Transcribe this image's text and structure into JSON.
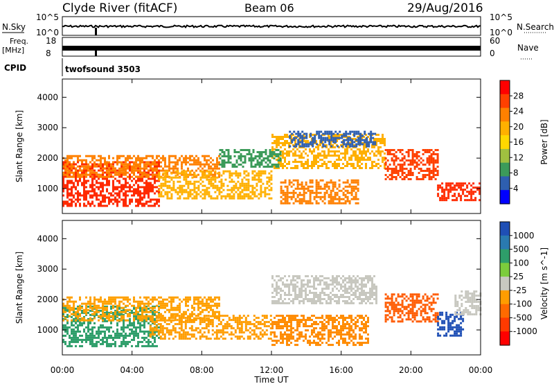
{
  "header": {
    "station": "Clyde River (fitACF)",
    "beam": "Beam 06",
    "date": "29/Aug/2016"
  },
  "top_panels": {
    "nsky_label": "N.Sky",
    "nsky_ticks": [
      "10^5",
      "10^0"
    ],
    "nsearch_label": "N.Search",
    "nsearch_ticks": [
      "10^5",
      "10^0"
    ],
    "freq_label_line1": "Freq.",
    "freq_label_line2": "[MHz]",
    "freq_ticks": [
      "18",
      "8"
    ],
    "nave_label": "Nave",
    "nave_ticks": [
      "60",
      "0"
    ],
    "cpid_label": "CPID",
    "cpid_value": "twofsound 3503"
  },
  "chart_data": [
    {
      "type": "heatmap",
      "title": "",
      "ylabel": "Slant Range [km]",
      "xlabel": "",
      "x_ticks": [
        "00:00",
        "04:00",
        "08:00",
        "12:00",
        "16:00",
        "20:00",
        "00:00"
      ],
      "y_ticks": [
        1000,
        2000,
        3000,
        4000
      ],
      "xlim_hours": [
        0,
        24
      ],
      "ylim_km": [
        180,
        4600
      ],
      "colorbar": {
        "label": "Power [dB]",
        "ticks": [
          "28",
          "24",
          "20",
          "16",
          "12",
          "8",
          "4"
        ],
        "colors": [
          "#ff0000",
          "#ff4000",
          "#ff8000",
          "#ffb000",
          "#ffd800",
          "#a0c040",
          "#3c9b5a",
          "#2e5fb0",
          "#0000ff"
        ]
      },
      "bands": [
        {
          "t0": 0.0,
          "t1": 5.5,
          "r0": 400,
          "r1": 1900,
          "color": "#ff2a00"
        },
        {
          "t0": 0.0,
          "t1": 9.0,
          "r0": 1400,
          "r1": 2100,
          "color": "#ff8000"
        },
        {
          "t0": 5.5,
          "t1": 12.0,
          "r0": 700,
          "r1": 1600,
          "color": "#ffb000"
        },
        {
          "t0": 12.0,
          "t1": 18.5,
          "r0": 1700,
          "r1": 2800,
          "color": "#ffb000"
        },
        {
          "t0": 13.0,
          "t1": 18.0,
          "r0": 2400,
          "r1": 2900,
          "color": "#2e5fb0"
        },
        {
          "t0": 12.5,
          "t1": 17.0,
          "r0": 500,
          "r1": 1300,
          "color": "#ff8000"
        },
        {
          "t0": 18.5,
          "t1": 21.5,
          "r0": 1300,
          "r1": 2300,
          "color": "#ff4000"
        },
        {
          "t0": 21.5,
          "t1": 24.0,
          "r0": 600,
          "r1": 1200,
          "color": "#ff2a00"
        },
        {
          "t0": 9.0,
          "t1": 12.5,
          "r0": 1700,
          "r1": 2300,
          "color": "#3c9b5a"
        }
      ]
    },
    {
      "type": "heatmap",
      "title": "",
      "ylabel": "Slant Range [km]",
      "xlabel": "Time UT",
      "x_ticks": [
        "00:00",
        "04:00",
        "08:00",
        "12:00",
        "16:00",
        "20:00",
        "00:00"
      ],
      "y_ticks": [
        1000,
        2000,
        3000,
        4000
      ],
      "xlim_hours": [
        0,
        24
      ],
      "ylim_km": [
        180,
        4600
      ],
      "colorbar": {
        "label": "Velocity [m s^-1]",
        "ticks": [
          "1000",
          "500",
          "100",
          "25",
          "-25",
          "-100",
          "-500",
          "-1000"
        ],
        "colors": [
          "#1f4fb5",
          "#2a7ab0",
          "#2e9e6a",
          "#7ccc3c",
          "#c8c8c0",
          "#ff9d00",
          "#ff6a00",
          "#ff3a00",
          "#ff0000"
        ]
      },
      "bands": [
        {
          "t0": 0.0,
          "t1": 5.5,
          "r0": 500,
          "r1": 1800,
          "color": "#2e9e6a"
        },
        {
          "t0": 0.0,
          "t1": 9.0,
          "r0": 1300,
          "r1": 2100,
          "color": "#ffa000"
        },
        {
          "t0": 5.0,
          "t1": 12.0,
          "r0": 700,
          "r1": 1500,
          "color": "#ff9d00"
        },
        {
          "t0": 12.0,
          "t1": 18.0,
          "r0": 1900,
          "r1": 2800,
          "color": "#c8c8c0"
        },
        {
          "t0": 12.0,
          "t1": 17.5,
          "r0": 500,
          "r1": 1500,
          "color": "#ff8a00"
        },
        {
          "t0": 18.5,
          "t1": 21.5,
          "r0": 1300,
          "r1": 2200,
          "color": "#ff5a00"
        },
        {
          "t0": 21.5,
          "t1": 23.0,
          "r0": 800,
          "r1": 1600,
          "color": "#1f4fb5"
        },
        {
          "t0": 22.5,
          "t1": 24.0,
          "r0": 1500,
          "r1": 2300,
          "color": "#c8c8c0"
        }
      ]
    }
  ]
}
